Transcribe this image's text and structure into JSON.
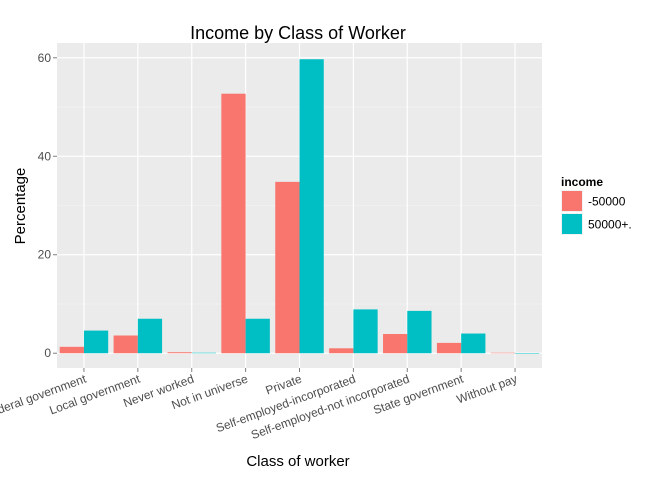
{
  "chart_data": {
    "type": "bar",
    "title": "Income by Class of Worker",
    "xlabel": "Class of worker",
    "ylabel": "Percentage",
    "categories": [
      "Federal government",
      "Local government",
      "Never worked",
      "Not in universe",
      "Private",
      "Self-employed-incorporated",
      "Self-employed-not incorporated",
      "State government",
      "Without pay"
    ],
    "series": [
      {
        "name": "-50000",
        "color": "#F8766D",
        "values": [
          1.3,
          3.6,
          0.2,
          52.7,
          34.8,
          1.0,
          3.9,
          2.1,
          0.1
        ]
      },
      {
        "name": "50000+.",
        "color": "#00BFC4",
        "values": [
          4.6,
          7.0,
          0.1,
          7.0,
          59.7,
          8.9,
          8.6,
          4.0,
          0.0
        ]
      }
    ],
    "ylim": [
      -3,
      63
    ],
    "yticks": [
      0,
      20,
      40,
      60
    ],
    "legend": {
      "title": "income",
      "position": "right"
    },
    "grid": true,
    "panel_background": "#EBEBEB"
  }
}
